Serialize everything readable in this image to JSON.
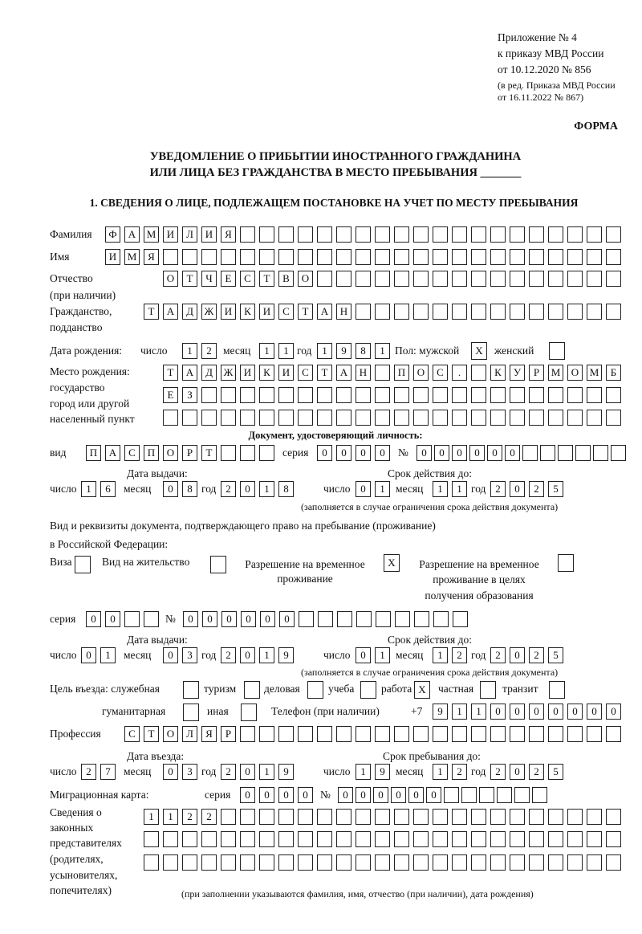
{
  "header": {
    "appendix": "Приложение № 4",
    "order": "к приказу МВД России",
    "order_date": "от 10.12.2020 № 856",
    "revision_1": "(в ред. Приказа МВД России",
    "revision_2": "от 16.11.2022 № 867)",
    "form_label": "ФОРМА"
  },
  "title": {
    "line1": "УВЕДОМЛЕНИЕ О ПРИБЫТИИ ИНОСТРАННОГО ГРАЖДАНИНА",
    "line2": "ИЛИ ЛИЦА БЕЗ ГРАЖДАНСТВА В МЕСТО ПРЕБЫВАНИЯ _______"
  },
  "section1": {
    "heading": "1. СВЕДЕНИЯ О ЛИЦЕ, ПОДЛЕЖАЩЕМ ПОСТАНОВКЕ НА УЧЕТ ПО МЕСТУ ПРЕБЫВАНИЯ",
    "surname": {
      "label": "Фамилия",
      "value": "ФАМИЛИЯ"
    },
    "name": {
      "label": "Имя",
      "value": "ИМЯ"
    },
    "patronymic": {
      "label": "Отчество",
      "label2": "(при наличии)",
      "value": "ОТЧЕСТВО"
    },
    "citizenship": {
      "label": "Гражданство,",
      "label2": "подданство",
      "value": "ТАДЖИКИСТАН"
    },
    "birth_date": {
      "label": "Дата рождения:",
      "day_label": "число",
      "day": "12",
      "month_label": "месяц",
      "month": "11",
      "year_label": "год",
      "year": "1981"
    },
    "sex": {
      "label": "Пол: мужской",
      "male": "X",
      "female_label": "женский",
      "female": ""
    },
    "birth_place": {
      "label1": "Место рождения:",
      "label2": "государство",
      "label3": "город или другой",
      "label4": "населенный пункт",
      "line1": "ТАДЖИКИСТАН ПОС. КУРМОМБ",
      "line2": "ЕЗ",
      "line3": ""
    },
    "identity_doc": {
      "heading": "Документ, удостоверяющий личность:",
      "type_label": "вид",
      "type": "ПАСПОРТ",
      "series_label": "серия",
      "series": "0000",
      "number_label": "№",
      "number": "000000",
      "issue_label": "Дата выдачи:",
      "expiry_label": "Срок действия до:",
      "day_label": "число",
      "month_label": "месяц",
      "year_label": "год",
      "issue_day": "16",
      "issue_month": "08",
      "issue_year": "2018",
      "expiry_day": "01",
      "expiry_month": "11",
      "expiry_year": "2025",
      "note": "(заполняется в случае ограничения срока действия документа)"
    },
    "stay_doc": {
      "label1": "Вид и реквизиты документа, подтверждающего право на пребывание (проживание)",
      "label2": "в Российской Федерации:",
      "visa_label": "Виза",
      "visa": "",
      "residence_label": "Вид на жительство",
      "residence": "",
      "temp_label1": "Разрешение на временное",
      "temp_label2": "проживание",
      "temp": "X",
      "edu_label1": "Разрешение на временное",
      "edu_label2": "проживание в целях",
      "edu_label3": "получения образования",
      "edu": "",
      "series_label": "серия",
      "series": "00",
      "number_label": "№",
      "number": "000000",
      "issue_label": "Дата выдачи:",
      "expiry_label": "Срок действия до:",
      "day_label": "число",
      "month_label": "месяц",
      "year_label": "год",
      "issue_day": "01",
      "issue_month": "03",
      "issue_year": "2019",
      "expiry_day": "01",
      "expiry_month": "12",
      "expiry_year": "2025",
      "note": "(заполняется в случае ограничения срока действия документа)"
    },
    "purpose": {
      "label": "Цель въезда: служебная",
      "service": "",
      "tourism_label": "туризм",
      "tourism": "",
      "business_label": "деловая",
      "business": "",
      "study_label": "учеба",
      "study": "",
      "work_label": "работа",
      "work": "X",
      "private_label": "частная",
      "private": "",
      "transit_label": "транзит",
      "transit": "",
      "humanitarian_label": "гуманитарная",
      "humanitarian": "",
      "other_label": "иная",
      "other": ""
    },
    "phone": {
      "label": "Телефон (при наличии)",
      "prefix": "+7",
      "value": "9110000000"
    },
    "profession": {
      "label": "Профессия",
      "value": "СТОЛЯР"
    },
    "entry": {
      "entry_label": "Дата въезда:",
      "stay_label": "Срок пребывания до:",
      "day_label": "число",
      "month_label": "месяц",
      "year_label": "год",
      "entry_day": "27",
      "entry_month": "03",
      "entry_year": "2019",
      "stay_day": "19",
      "stay_month": "12",
      "stay_year": "2025"
    },
    "migration_card": {
      "label": "Миграционная карта:",
      "series_label": "серия",
      "series": "0000",
      "number_label": "№",
      "number": "000000"
    },
    "representatives": {
      "label1": "Сведения о",
      "label2": "законных",
      "label3": "представителях",
      "label4": "(родителях,",
      "label5": "усыновителях,",
      "label6": "попечителях)",
      "line1": "1122",
      "line2": "",
      "line3": "",
      "note": "(при заполнении указываются фамилия, имя, отчество (при наличии), дата рождения)"
    }
  }
}
